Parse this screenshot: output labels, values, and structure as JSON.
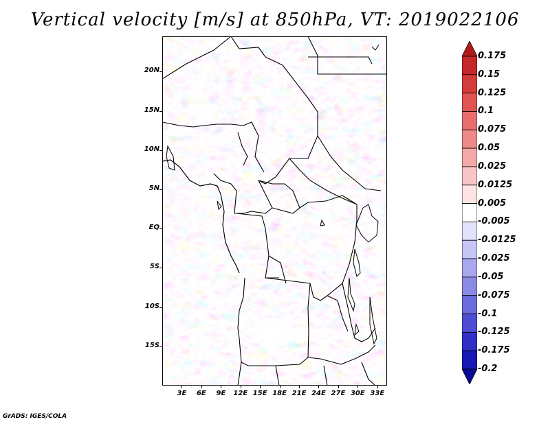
{
  "title": "Vertical velocity [m/s] at 850hPa, VT: 2019022106",
  "credit": "GrADS: IGES/COLA",
  "map": {
    "lat_labels": [
      "20N",
      "15N",
      "10N",
      "5N",
      "EQ",
      "5S",
      "10S",
      "15S"
    ],
    "lon_labels": [
      "3E",
      "6E",
      "9E",
      "12E",
      "15E",
      "18E",
      "21E",
      "24E",
      "27E",
      "30E",
      "33E"
    ],
    "lat_values": [
      20,
      15,
      10,
      5,
      0,
      -5,
      -10,
      -15
    ],
    "lon_values": [
      3,
      6,
      9,
      12,
      15,
      18,
      21,
      24,
      27,
      30,
      33
    ],
    "lon_range": [
      0,
      34.5
    ],
    "lat_range": [
      -20,
      24.5
    ]
  },
  "colorbar": {
    "labels": [
      "0.175",
      "0.15",
      "0.125",
      "0.1",
      "0.075",
      "0.05",
      "0.025",
      "0.0125",
      "0.005",
      "-0.005",
      "-0.0125",
      "-0.025",
      "-0.05",
      "-0.075",
      "-0.1",
      "-0.125",
      "-0.175",
      "-0.2"
    ],
    "colors": [
      "#b21a1a",
      "#c42828",
      "#d43c3c",
      "#e05454",
      "#e86e6e",
      "#ee8a8a",
      "#f4a8a8",
      "#f8c6c6",
      "#fce4e4",
      "#ffffff",
      "#e2e2fa",
      "#c6c6f4",
      "#a8a8ee",
      "#8a8ae6",
      "#6c6cde",
      "#4e4ed4",
      "#3030c6",
      "#1818b2",
      "#0a0a96"
    ]
  }
}
